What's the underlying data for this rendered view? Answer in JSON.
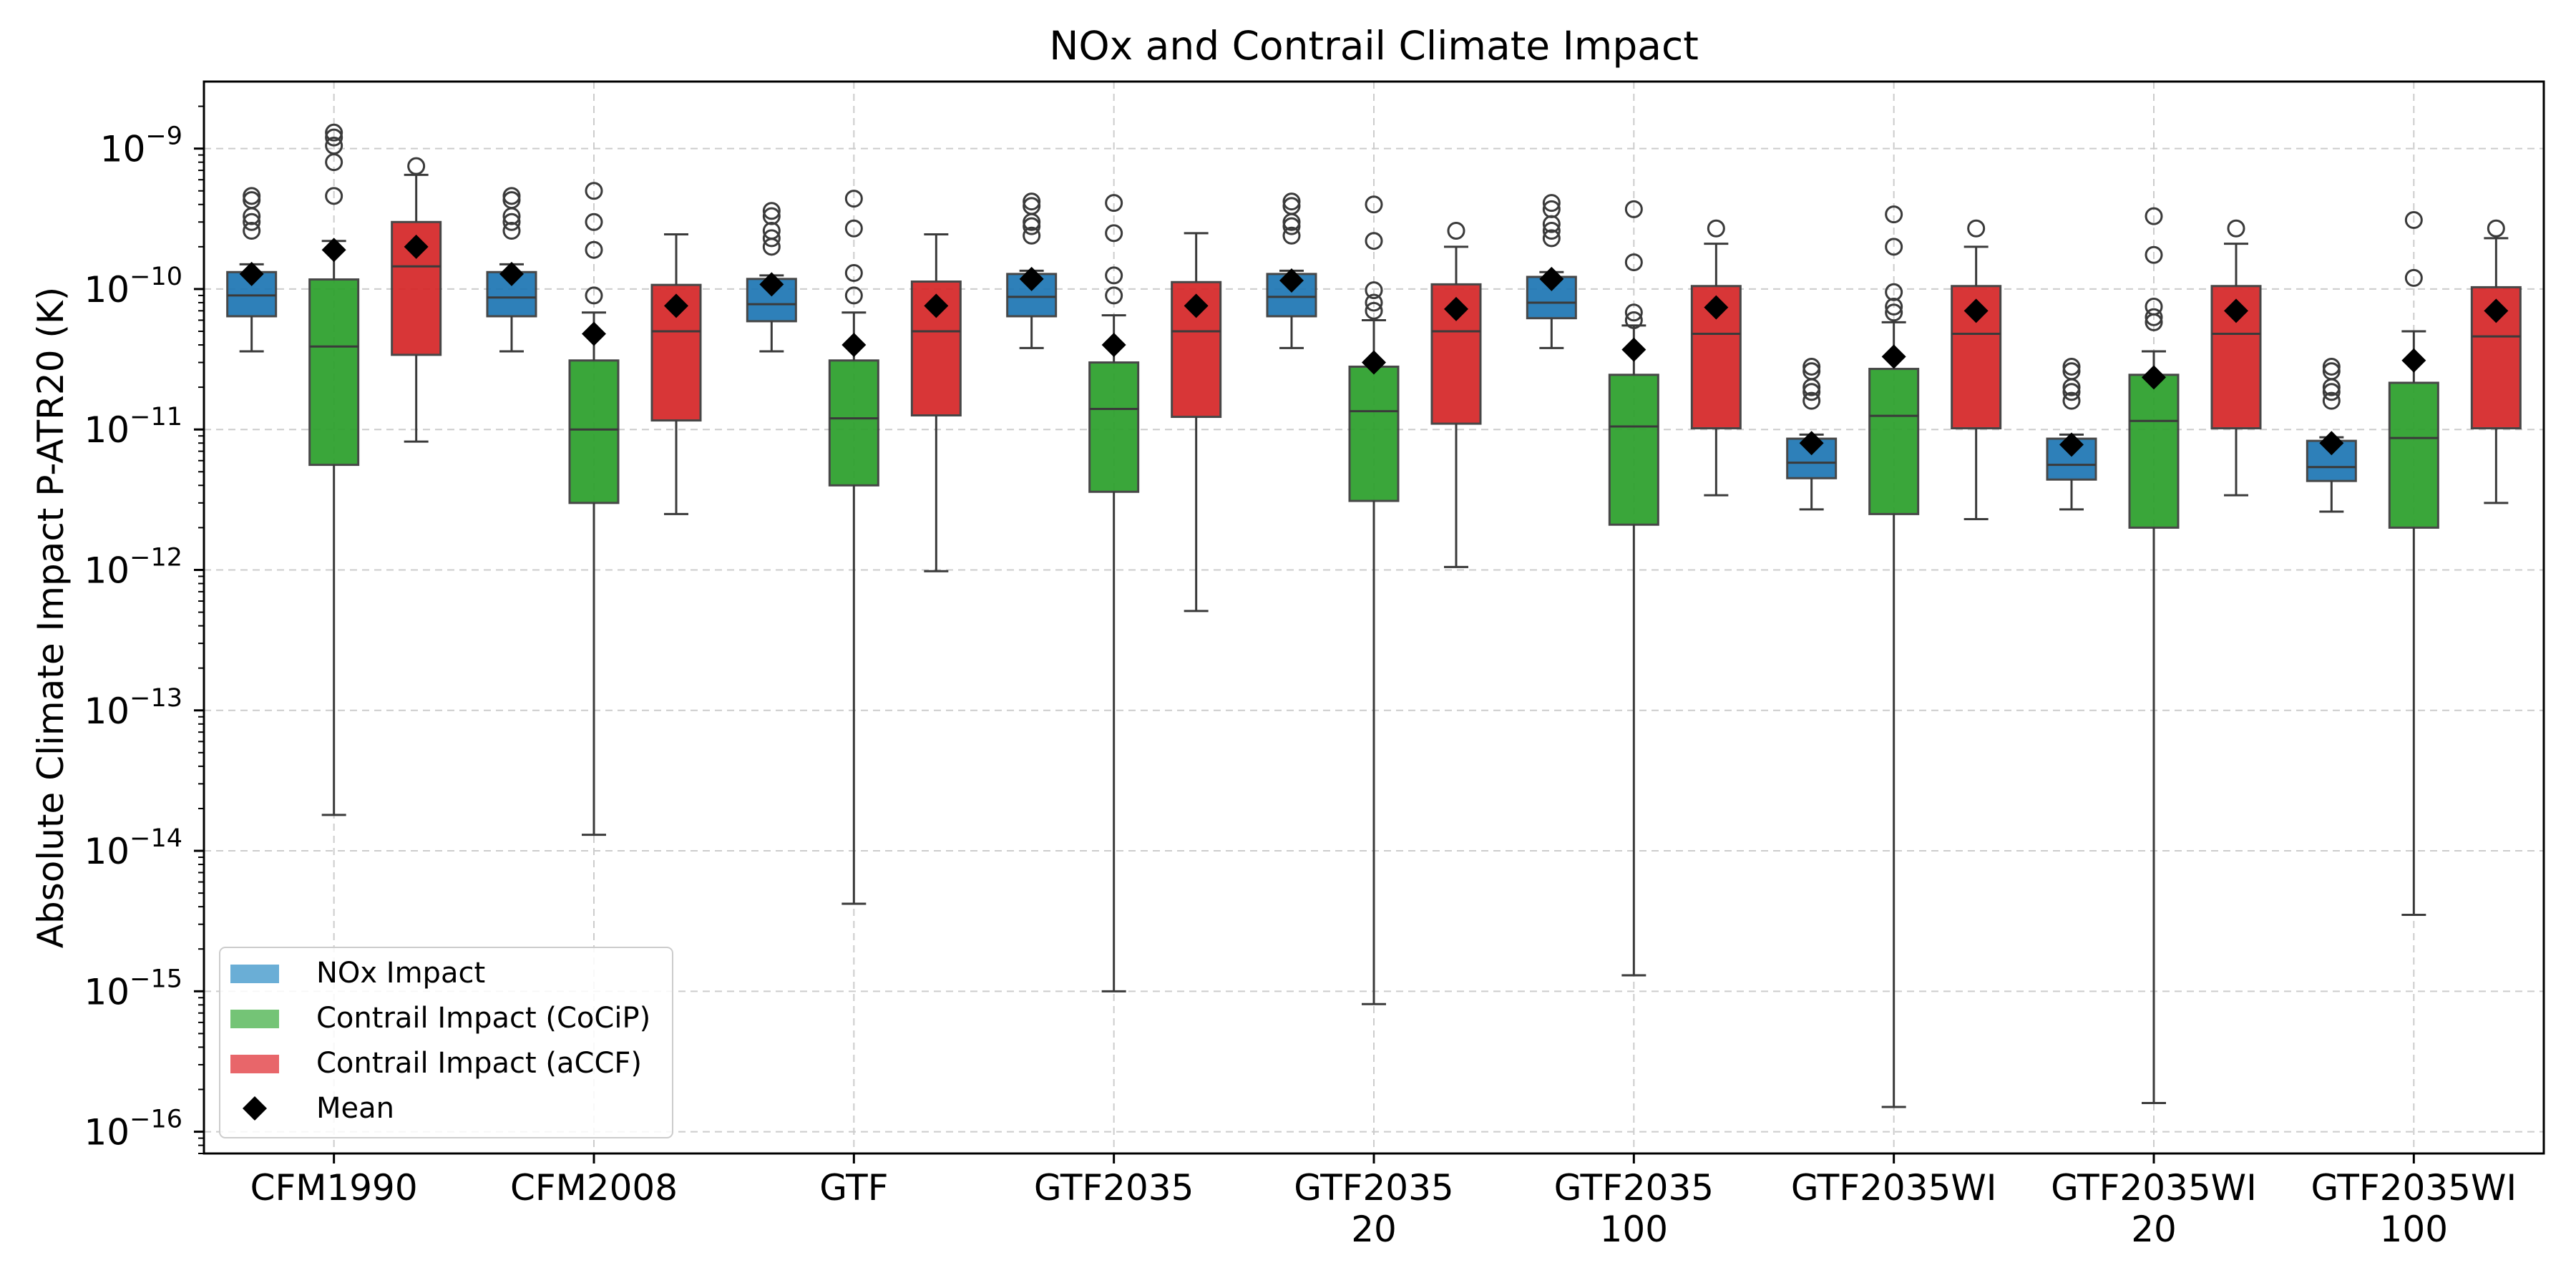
{
  "chart_data": {
    "type": "box",
    "title": "NOx and Contrail Climate Impact",
    "ylabel": "Absolute Climate Impact P-ATR20 (K)",
    "xlabel": "",
    "yscale": "log",
    "ylim": [
      7e-17,
      3e-09
    ],
    "ytick_exponents": [
      "-9",
      "-10",
      "-11",
      "-12",
      "-13",
      "-14",
      "-15",
      "-16"
    ],
    "ytick_base": "10",
    "ytick_values": [
      1e-09,
      1e-10,
      1e-11,
      1e-12,
      1e-13,
      1e-14,
      1e-15,
      1e-16
    ],
    "grid": true,
    "legend_position": "lower-left",
    "categories": [
      [
        "CFM1990"
      ],
      [
        "CFM2008"
      ],
      [
        "GTF"
      ],
      [
        "GTF2035"
      ],
      [
        "GTF2035",
        "20"
      ],
      [
        "GTF2035",
        "100"
      ],
      [
        "GTF2035WI"
      ],
      [
        "GTF2035WI",
        "20"
      ],
      [
        "GTF2035WI",
        "100"
      ]
    ],
    "series": [
      {
        "name": "NOx Impact",
        "color": "#1f77b4",
        "legend_color": "#6aaed6",
        "boxes": [
          {
            "whislo": 3.6e-11,
            "q1": 6.4e-11,
            "med": 9e-11,
            "q3": 1.32e-10,
            "whishi": 1.5e-10,
            "mean": 1.28e-10,
            "fliers": [
              2.6e-10,
              3e-10,
              3.3e-10,
              4.3e-10,
              4.6e-10
            ]
          },
          {
            "whislo": 3.6e-11,
            "q1": 6.4e-11,
            "med": 8.7e-11,
            "q3": 1.32e-10,
            "whishi": 1.5e-10,
            "mean": 1.28e-10,
            "fliers": [
              2.6e-10,
              3e-10,
              3.3e-10,
              4.3e-10,
              4.6e-10
            ]
          },
          {
            "whislo": 3.6e-11,
            "q1": 5.9e-11,
            "med": 7.8e-11,
            "q3": 1.18e-10,
            "whishi": 1.25e-10,
            "mean": 1.08e-10,
            "fliers": [
              2e-10,
              2.3e-10,
              2.6e-10,
              3.3e-10,
              3.6e-10
            ]
          },
          {
            "whislo": 3.8e-11,
            "q1": 6.4e-11,
            "med": 8.8e-11,
            "q3": 1.28e-10,
            "whishi": 1.35e-10,
            "mean": 1.18e-10,
            "fliers": [
              2.4e-10,
              2.8e-10,
              3e-10,
              3.9e-10,
              4.2e-10
            ]
          },
          {
            "whislo": 3.8e-11,
            "q1": 6.4e-11,
            "med": 8.8e-11,
            "q3": 1.28e-10,
            "whishi": 1.35e-10,
            "mean": 1.15e-10,
            "fliers": [
              2.4e-10,
              2.8e-10,
              3e-10,
              3.9e-10,
              4.2e-10
            ]
          },
          {
            "whislo": 3.8e-11,
            "q1": 6.2e-11,
            "med": 8e-11,
            "q3": 1.22e-10,
            "whishi": 1.32e-10,
            "mean": 1.18e-10,
            "fliers": [
              2.3e-10,
              2.6e-10,
              2.9e-10,
              3.7e-10,
              4.1e-10
            ]
          },
          {
            "whislo": 2.7e-12,
            "q1": 4.5e-12,
            "med": 5.8e-12,
            "q3": 8.6e-12,
            "whishi": 9.2e-12,
            "mean": 8e-12,
            "fliers": [
              1.6e-11,
              1.85e-11,
              2e-11,
              2.6e-11,
              2.8e-11
            ]
          },
          {
            "whislo": 2.7e-12,
            "q1": 4.4e-12,
            "med": 5.6e-12,
            "q3": 8.6e-12,
            "whishi": 9.2e-12,
            "mean": 7.8e-12,
            "fliers": [
              1.6e-11,
              1.85e-11,
              2e-11,
              2.6e-11,
              2.8e-11
            ]
          },
          {
            "whislo": 2.6e-12,
            "q1": 4.3e-12,
            "med": 5.4e-12,
            "q3": 8.3e-12,
            "whishi": 8.8e-12,
            "mean": 8e-12,
            "fliers": [
              1.6e-11,
              1.85e-11,
              2e-11,
              2.6e-11,
              2.8e-11
            ]
          }
        ]
      },
      {
        "name": "Contrail Impact (CoCiP)",
        "color": "#2ca02c",
        "legend_color": "#74c476",
        "boxes": [
          {
            "whislo": 1.8e-14,
            "q1": 5.6e-12,
            "med": 3.9e-11,
            "q3": 1.17e-10,
            "whishi": 2.2e-10,
            "mean": 1.9e-10,
            "fliers": [
              4.6e-10,
              8e-10,
              1.05e-09,
              1.2e-09,
              1.3e-09
            ]
          },
          {
            "whislo": 1.3e-14,
            "q1": 3e-12,
            "med": 1e-11,
            "q3": 3.1e-11,
            "whishi": 6.8e-11,
            "mean": 4.8e-11,
            "fliers": [
              9e-11,
              1.9e-10,
              3e-10,
              5e-10
            ]
          },
          {
            "whislo": 4.2e-15,
            "q1": 4e-12,
            "med": 1.2e-11,
            "q3": 3.1e-11,
            "whishi": 6.8e-11,
            "mean": 4e-11,
            "fliers": [
              9e-11,
              1.3e-10,
              2.7e-10,
              4.4e-10
            ]
          },
          {
            "whislo": 1e-15,
            "q1": 3.6e-12,
            "med": 1.4e-11,
            "q3": 3e-11,
            "whishi": 6.5e-11,
            "mean": 4e-11,
            "fliers": [
              9e-11,
              1.25e-10,
              2.5e-10,
              4.1e-10
            ]
          },
          {
            "whislo": 8.1e-16,
            "q1": 3.1e-12,
            "med": 1.35e-11,
            "q3": 2.8e-11,
            "whishi": 6e-11,
            "mean": 3e-11,
            "fliers": [
              7e-11,
              8e-11,
              9.8e-11,
              2.2e-10,
              4e-10
            ]
          },
          {
            "whislo": 1.3e-15,
            "q1": 2.1e-12,
            "med": 1.05e-11,
            "q3": 2.45e-11,
            "whishi": 5.5e-11,
            "mean": 3.7e-11,
            "fliers": [
              6e-11,
              6.8e-11,
              1.55e-10,
              3.7e-10
            ]
          },
          {
            "whislo": 1.5e-16,
            "q1": 2.5e-12,
            "med": 1.25e-11,
            "q3": 2.7e-11,
            "whishi": 5.8e-11,
            "mean": 3.3e-11,
            "fliers": [
              6.8e-11,
              7.5e-11,
              9.5e-11,
              2e-10,
              3.4e-10
            ]
          },
          {
            "whislo": 1.6e-16,
            "q1": 2e-12,
            "med": 1.15e-11,
            "q3": 2.45e-11,
            "whishi": 3.6e-11,
            "mean": 2.35e-11,
            "fliers": [
              5.8e-11,
              6.3e-11,
              7.5e-11,
              1.75e-10,
              3.3e-10
            ]
          },
          {
            "whislo": 3.5e-15,
            "q1": 2e-12,
            "med": 8.7e-12,
            "q3": 2.15e-11,
            "whishi": 5e-11,
            "mean": 3.1e-11,
            "fliers": [
              1.2e-10,
              3.1e-10
            ]
          }
        ]
      },
      {
        "name": "Contrail Impact (aCCF)",
        "color": "#d62728",
        "legend_color": "#e8666a",
        "boxes": [
          {
            "whislo": 8.2e-12,
            "q1": 3.4e-11,
            "med": 1.45e-10,
            "q3": 3e-10,
            "whishi": 6.5e-10,
            "mean": 2e-10,
            "fliers": [
              7.5e-10
            ]
          },
          {
            "whislo": 2.5e-12,
            "q1": 1.16e-11,
            "med": 5e-11,
            "q3": 1.07e-10,
            "whishi": 2.45e-10,
            "mean": 7.6e-11,
            "fliers": []
          },
          {
            "whislo": 9.8e-13,
            "q1": 1.26e-11,
            "med": 5e-11,
            "q3": 1.13e-10,
            "whishi": 2.45e-10,
            "mean": 7.6e-11,
            "fliers": []
          },
          {
            "whislo": 5.1e-13,
            "q1": 1.23e-11,
            "med": 5e-11,
            "q3": 1.12e-10,
            "whishi": 2.5e-10,
            "mean": 7.6e-11,
            "fliers": []
          },
          {
            "whislo": 1.05e-12,
            "q1": 1.1e-11,
            "med": 5e-11,
            "q3": 1.08e-10,
            "whishi": 2e-10,
            "mean": 7.2e-11,
            "fliers": [
              2.6e-10
            ]
          },
          {
            "whislo": 3.4e-12,
            "q1": 1.02e-11,
            "med": 4.8e-11,
            "q3": 1.05e-10,
            "whishi": 2.1e-10,
            "mean": 7.4e-11,
            "fliers": [
              2.7e-10
            ]
          },
          {
            "whislo": 2.3e-12,
            "q1": 1.02e-11,
            "med": 4.8e-11,
            "q3": 1.05e-10,
            "whishi": 2e-10,
            "mean": 7e-11,
            "fliers": [
              2.7e-10
            ]
          },
          {
            "whislo": 3.4e-12,
            "q1": 1.02e-11,
            "med": 4.8e-11,
            "q3": 1.05e-10,
            "whishi": 2.1e-10,
            "mean": 7e-11,
            "fliers": [
              2.7e-10
            ]
          },
          {
            "whislo": 3e-12,
            "q1": 1.02e-11,
            "med": 4.6e-11,
            "q3": 1.03e-10,
            "whishi": 2.3e-10,
            "mean": 7e-11,
            "fliers": [
              2.7e-10
            ]
          }
        ]
      }
    ],
    "mean_label": "Mean",
    "mean_marker_color": "#000000"
  }
}
